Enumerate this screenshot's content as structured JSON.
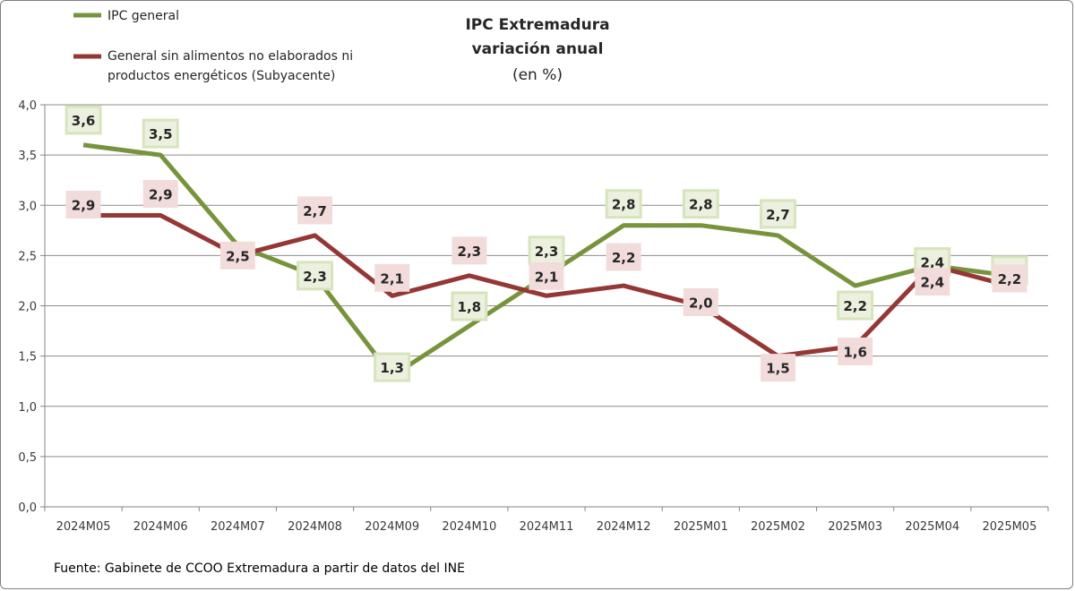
{
  "chart_data": {
    "type": "line",
    "title": "IPC Extremadura",
    "title_line2": "variación anual",
    "subtitle": "(en %)",
    "categories": [
      "2024M05",
      "2024M06",
      "2024M07",
      "2024M08",
      "2024M09",
      "2024M10",
      "2024M11",
      "2024M12",
      "2025M01",
      "2025M02",
      "2025M03",
      "2025M04",
      "2025M05"
    ],
    "ylim": [
      0,
      4
    ],
    "ytick_labels": [
      "0,0",
      "0,5",
      "1,0",
      "1,5",
      "2,0",
      "2,5",
      "3,0",
      "3,5",
      "4,0"
    ],
    "grid": true,
    "legend_position": "top-left",
    "series": [
      {
        "name": "IPC general",
        "color": "#77933c",
        "label_bg": "#ebf1de",
        "label_border": "#d7e4bd",
        "values": [
          3.6,
          3.5,
          2.6,
          2.3,
          1.3,
          1.8,
          2.3,
          2.8,
          2.8,
          2.7,
          2.2,
          2.4,
          2.3
        ],
        "labels": [
          "3,6",
          "3,5",
          "",
          "2,3",
          "1,3",
          "1,8",
          "2,3",
          "2,8",
          "2,8",
          "2,7",
          "2,2",
          "2,4",
          "2,3"
        ]
      },
      {
        "name_line1": "General sin alimentos no elaborados ni",
        "name_line2": "productos energéticos (Subyacente)",
        "color": "#953735",
        "label_bg": "#f2dcdb",
        "label_border": "#f2dcdb",
        "values": [
          2.9,
          2.9,
          2.5,
          2.7,
          2.1,
          2.3,
          2.1,
          2.2,
          2.0,
          1.5,
          1.6,
          2.4,
          2.2
        ],
        "labels": [
          "2,9",
          "2,9",
          "2,5",
          "2,7",
          "2,1",
          "2,3",
          "2,1",
          "2,2",
          "2,0",
          "1,5",
          "1,6",
          "2,4",
          "2,2"
        ]
      }
    ]
  },
  "source_note": "Fuente: Gabinete de CCOO Extremadura a partir de datos del INE"
}
